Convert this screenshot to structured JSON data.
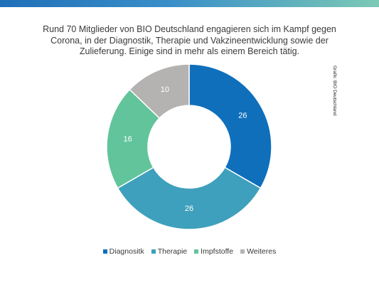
{
  "title": "Rund 70 Mitglieder von BIO Deutschland engagieren sich im Kampf gegen Corona, in der Diagnostik, Therapie und Vakzineentwicklung sowie der Zulieferung. Einige sind in mehr als einem Bereich tätig.",
  "credit": "Grafik: BIO Deutschland",
  "chart_data": {
    "type": "pie",
    "style": "donut",
    "categories": [
      "Diagnositk",
      "Therapie",
      "Impfstoffe",
      "Weiteres"
    ],
    "values": [
      26,
      26,
      16,
      10
    ],
    "colors": [
      "#0f6fbb",
      "#3ea0bc",
      "#62c49b",
      "#b5b2b2"
    ],
    "legend": "bottom"
  }
}
